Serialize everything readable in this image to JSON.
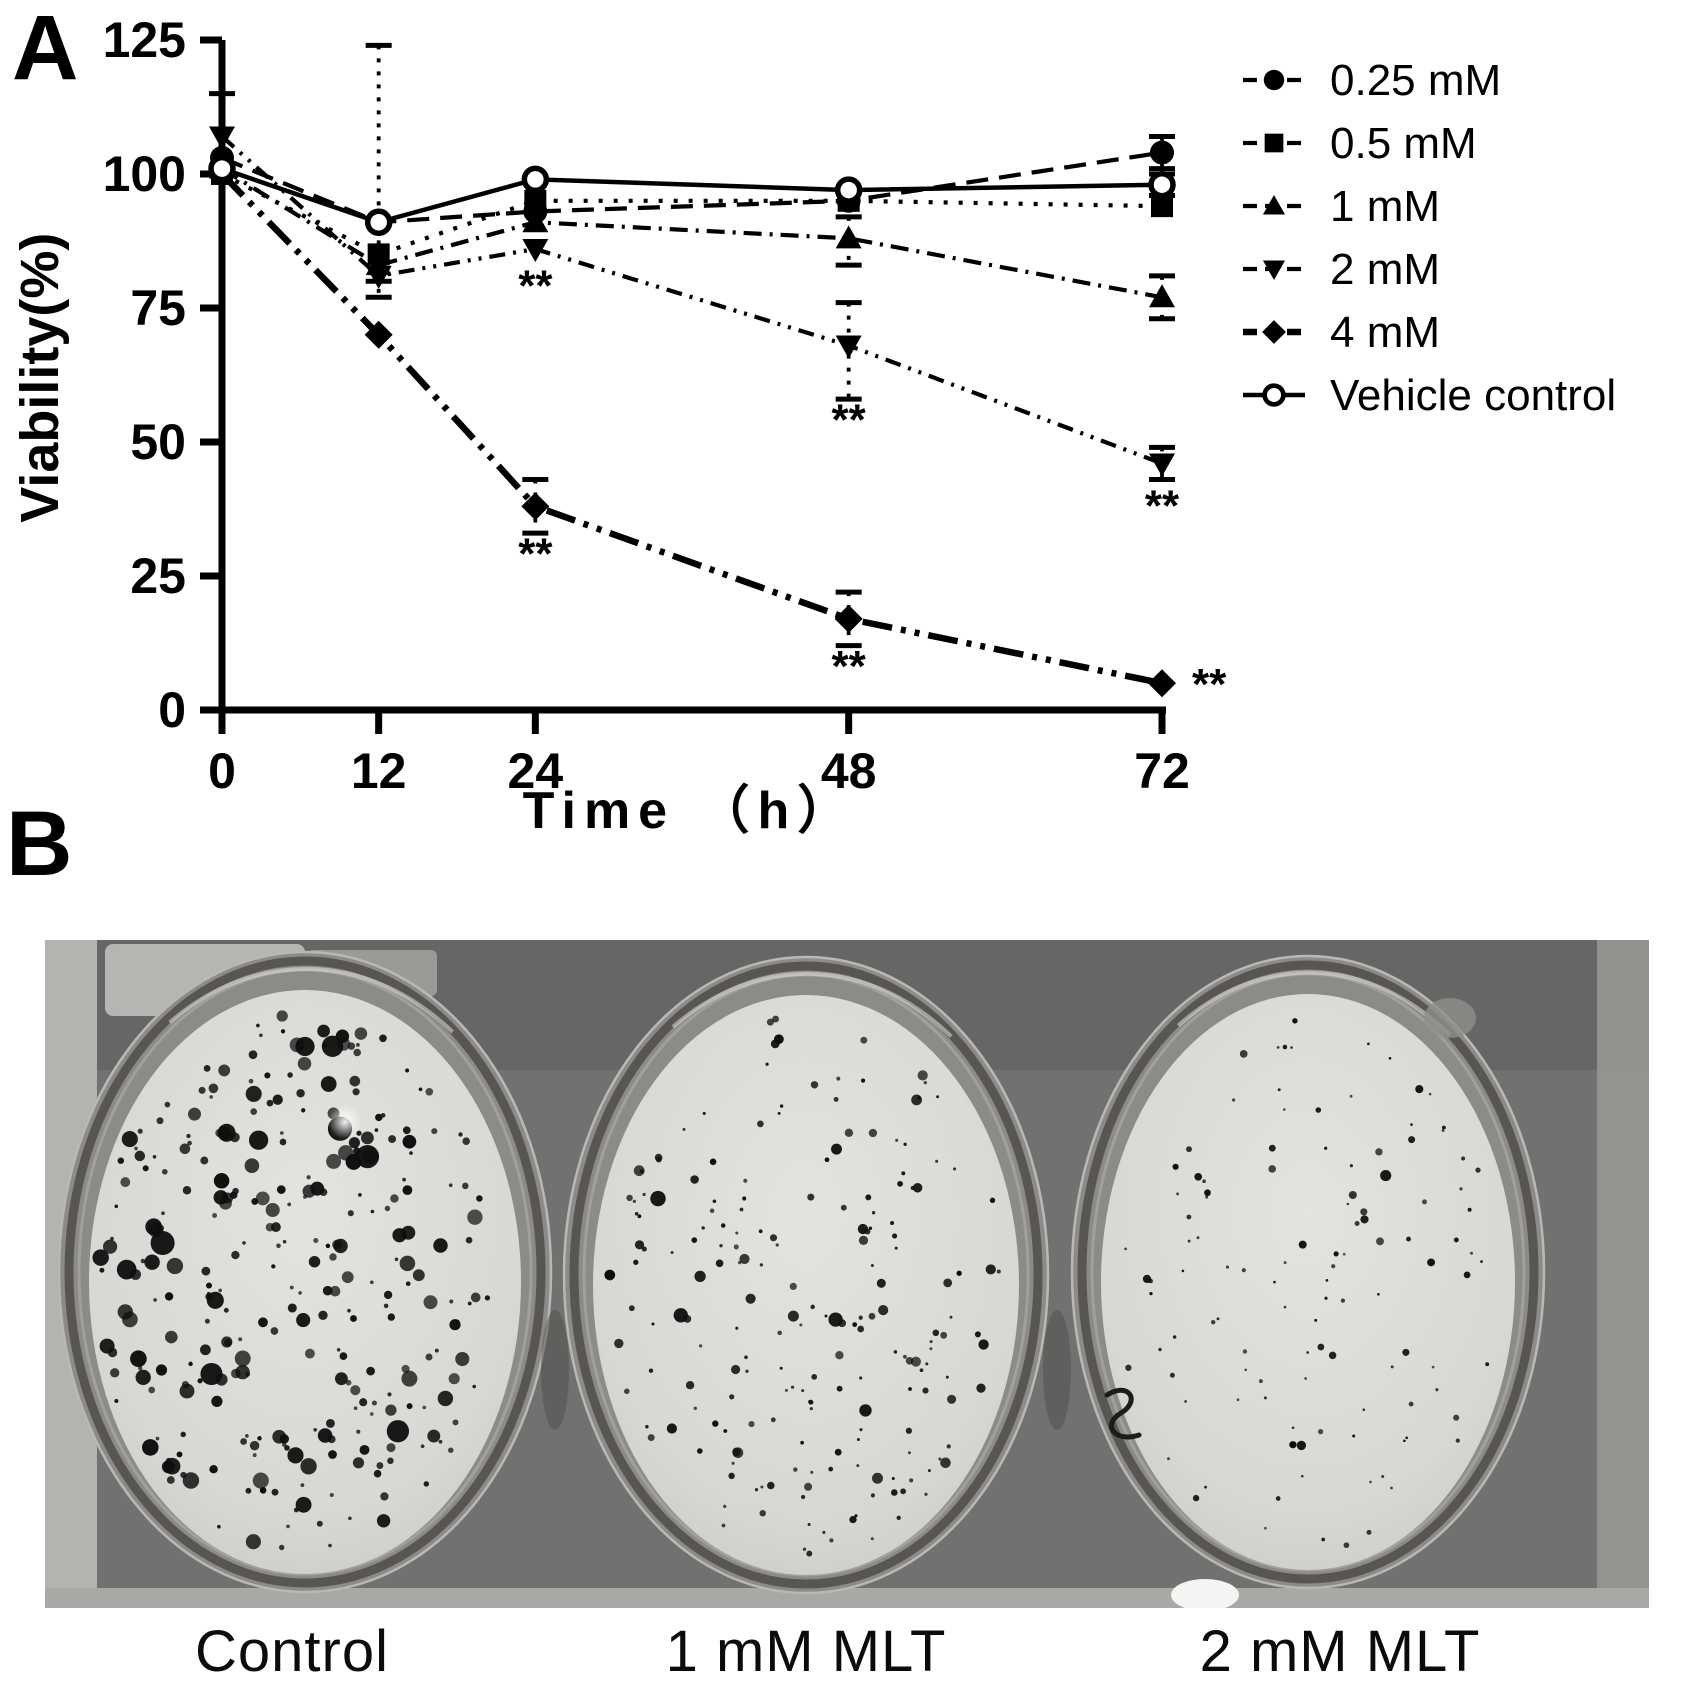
{
  "figure": {
    "panel_a_label": "A",
    "panel_b_label": "B"
  },
  "chart_data": {
    "type": "line",
    "title": "",
    "xlabel": "Time （h）",
    "ylabel": "Viability(%)",
    "xlim": [
      0,
      72
    ],
    "ylim": [
      0,
      125
    ],
    "x_ticks": [
      0,
      12,
      24,
      48,
      72
    ],
    "y_ticks": [
      0,
      25,
      50,
      75,
      100,
      125
    ],
    "grid": "off",
    "legend_position": "top-right",
    "x": [
      0,
      12,
      24,
      48,
      72
    ],
    "series": [
      {
        "name": "0.25 mM",
        "marker": "circle-filled",
        "line": "dashed",
        "values": [
          103,
          91,
          93,
          95,
          104
        ],
        "error_bars": [
          {
            "t": 72,
            "plus": 3,
            "minus": 3
          }
        ]
      },
      {
        "name": "0.5 mM",
        "marker": "square-filled",
        "line": "dotted",
        "values": [
          100,
          85,
          95,
          95,
          94
        ],
        "error_bars": [
          {
            "t": 12,
            "plus": 39,
            "minus": 5
          }
        ]
      },
      {
        "name": "1 mM",
        "marker": "triangle-up-filled",
        "line": "dash-dot",
        "values": [
          101,
          83,
          91,
          88,
          77
        ],
        "error_bars": [
          {
            "t": 48,
            "plus": 4,
            "minus": 5
          },
          {
            "t": 72,
            "plus": 4,
            "minus": 4
          }
        ]
      },
      {
        "name": "2 mM",
        "marker": "triangle-down-filled",
        "line": "dash-dot-dot",
        "values": [
          107,
          81,
          86,
          68,
          46
        ],
        "error_bars": [
          {
            "t": 0,
            "plus": 8,
            "minus": 0
          },
          {
            "t": 12,
            "plus": 0,
            "minus": 4
          },
          {
            "t": 48,
            "plus": 8,
            "minus": 10
          },
          {
            "t": 72,
            "plus": 3,
            "minus": 3
          }
        ]
      },
      {
        "name": "4 mM",
        "marker": "diamond-filled",
        "line": "dash-dot-dot-heavy",
        "values": [
          100,
          70,
          38,
          17,
          5
        ],
        "error_bars": [
          {
            "t": 24,
            "plus": 5,
            "minus": 5
          },
          {
            "t": 48,
            "plus": 5,
            "minus": 5
          }
        ]
      },
      {
        "name": "Vehicle control",
        "marker": "circle-open",
        "line": "solid",
        "values": [
          101,
          91,
          99,
          97,
          98
        ],
        "error_bars": [
          {
            "t": 72,
            "plus": 2,
            "minus": 2
          }
        ]
      }
    ],
    "annotations": [
      {
        "t": 24,
        "v": 79,
        "text": "**"
      },
      {
        "t": 24,
        "v": 29,
        "text": "**"
      },
      {
        "t": 48,
        "v": 54,
        "text": "**"
      },
      {
        "t": 48,
        "v": 8,
        "text": "**"
      },
      {
        "t": 72,
        "v": 38,
        "text": "**"
      },
      {
        "t": 72,
        "v": 5,
        "text": "**",
        "placement": "right"
      }
    ]
  },
  "panel_b": {
    "description": "Colony formation assay photograph: three dishes with stained colonies",
    "dishes": [
      {
        "label": "Control",
        "colony_density": "high",
        "approx_colonies": 270
      },
      {
        "label": "1 mM MLT",
        "colony_density": "medium",
        "approx_colonies": 185
      },
      {
        "label": "2 mM MLT",
        "colony_density": "low",
        "approx_colonies": 110
      }
    ]
  },
  "colors": {
    "ink": "#000000",
    "photo_background": "#6e6e6a",
    "membrane": "#d9d9d5",
    "colony": "#0e0e0e"
  }
}
